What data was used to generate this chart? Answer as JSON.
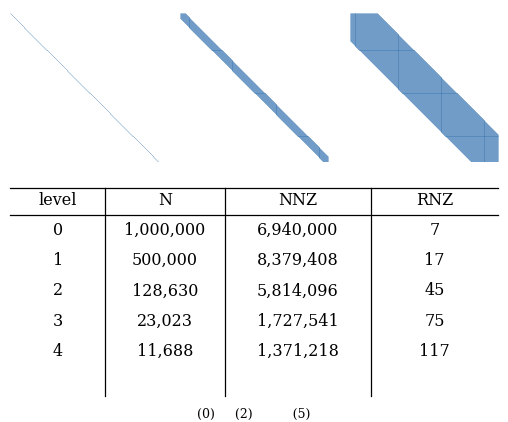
{
  "table_headers": [
    "level",
    "N",
    "NNZ",
    "RNZ"
  ],
  "table_data": [
    [
      "0",
      "1,000,000",
      "6,940,000",
      "7"
    ],
    [
      "1",
      "500,000",
      "8,379,408",
      "17"
    ],
    [
      "2",
      "128,630",
      "5,814,096",
      "45"
    ],
    [
      "3",
      "23,023",
      "1,727,541",
      "75"
    ],
    [
      "4",
      "11,688",
      "1,371,218",
      "117"
    ]
  ],
  "spy_color": "#3d7ab5",
  "footnote": "(0)     (2)          (5)",
  "background_color": "#ffffff"
}
